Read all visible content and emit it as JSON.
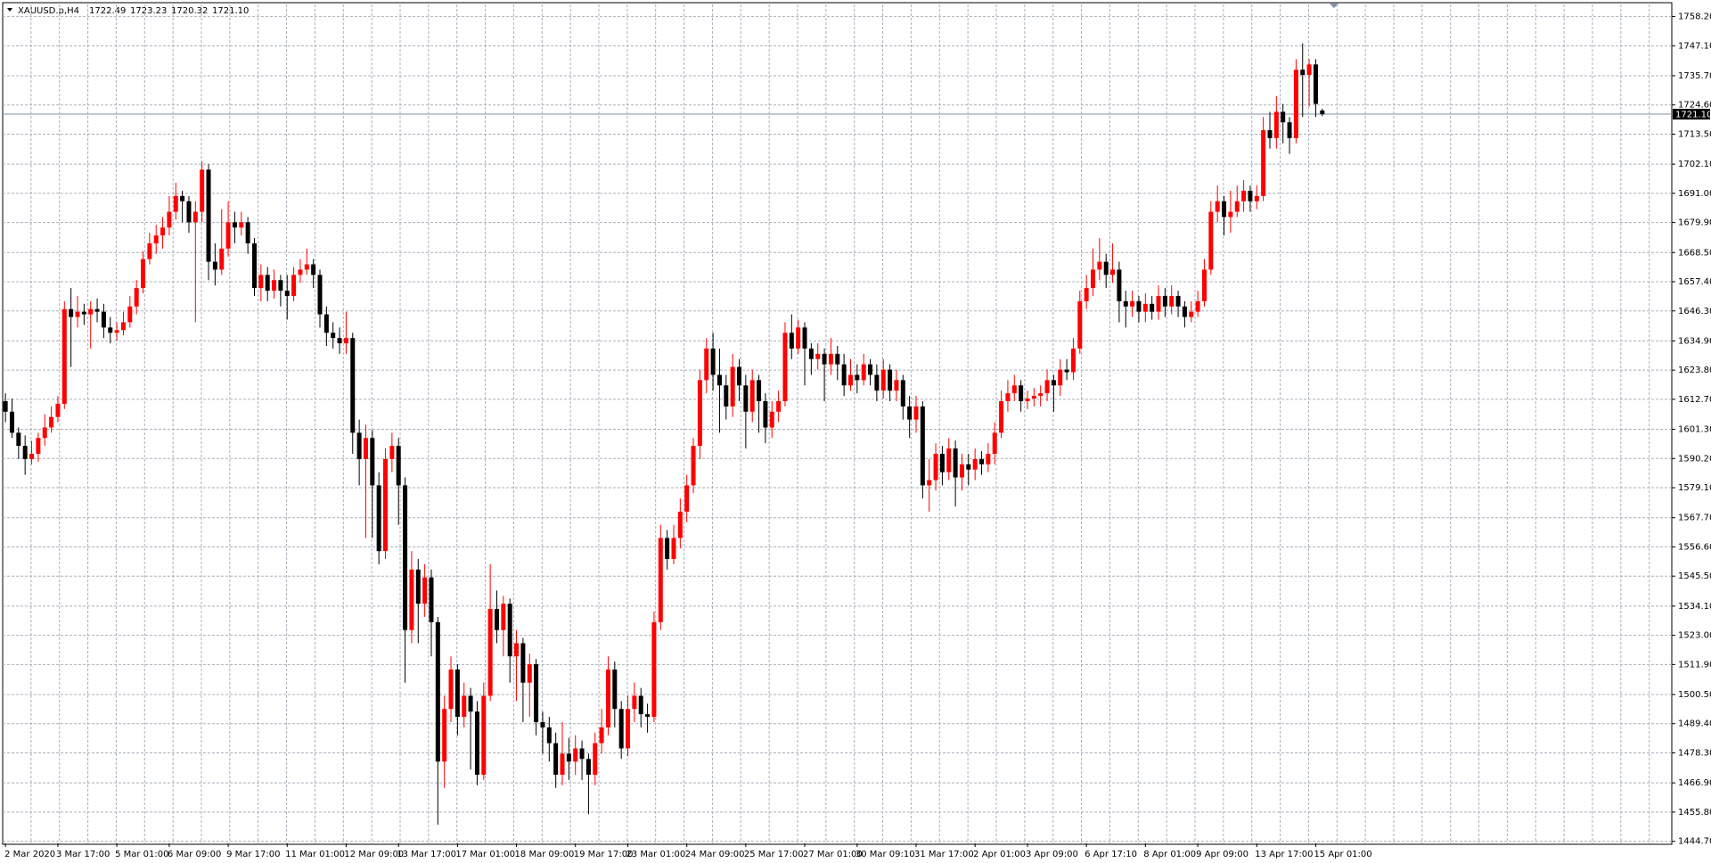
{
  "chart_data": {
    "type": "candlestick",
    "title": "XAUUSD.p,H4",
    "title_values": [
      {
        "value": 1722.49,
        "label": "1722.49"
      },
      {
        "value": 1723.23,
        "label": "1723.23"
      },
      {
        "value": 1720.32,
        "label": "1720.32"
      },
      {
        "value": 1721.1,
        "label": "1721.10"
      }
    ],
    "up_color": "#ff0000",
    "down_color": "#000000",
    "grid": true,
    "price_line": {
      "value": 1721.1,
      "label": "1721.10"
    },
    "ylim": [
      1443.9,
      1762.8
    ],
    "yticks": [
      {
        "value": 1758.2,
        "label": "1758.20"
      },
      {
        "value": 1747.1,
        "label": "1747.10"
      },
      {
        "value": 1735.7,
        "label": "1735.70"
      },
      {
        "value": 1724.6,
        "label": "1724.60"
      },
      {
        "value": 1713.5,
        "label": "1713.50"
      },
      {
        "value": 1702.1,
        "label": "1702.10"
      },
      {
        "value": 1691,
        "label": "1691.00"
      },
      {
        "value": 1679.9,
        "label": "1679.90"
      },
      {
        "value": 1668.5,
        "label": "1668.50"
      },
      {
        "value": 1657.4,
        "label": "1657.40"
      },
      {
        "value": 1646.3,
        "label": "1646.30"
      },
      {
        "value": 1634.9,
        "label": "1634.90"
      },
      {
        "value": 1623.8,
        "label": "1623.80"
      },
      {
        "value": 1612.7,
        "label": "1612.70"
      },
      {
        "value": 1601.3,
        "label": "1601.30"
      },
      {
        "value": 1590.2,
        "label": "1590.20"
      },
      {
        "value": 1579.1,
        "label": "1579.10"
      },
      {
        "value": 1567.7,
        "label": "1567.70"
      },
      {
        "value": 1556.6,
        "label": "1556.60"
      },
      {
        "value": 1545.5,
        "label": "1545.50"
      },
      {
        "value": 1534.1,
        "label": "1534.10"
      },
      {
        "value": 1523,
        "label": "1523.00"
      },
      {
        "value": 1511.9,
        "label": "1511.90"
      },
      {
        "value": 1500.5,
        "label": "1500.50"
      },
      {
        "value": 1489.4,
        "label": "1489.40"
      },
      {
        "value": 1478.3,
        "label": "1478.30"
      },
      {
        "value": 1466.9,
        "label": "1466.90"
      },
      {
        "value": 1455.8,
        "label": "1455.80"
      },
      {
        "value": 1444.7,
        "label": "1444.70"
      }
    ],
    "categories": [
      "2 Mar 2020",
      null,
      null,
      null,
      null,
      null,
      null,
      null,
      "3 Mar 17:00",
      null,
      null,
      null,
      null,
      null,
      null,
      null,
      null,
      "5 Mar 01:00",
      null,
      null,
      null,
      null,
      null,
      null,
      null,
      "6 Mar 09:00",
      null,
      null,
      null,
      null,
      null,
      null,
      null,
      null,
      "9 Mar 17:00",
      null,
      null,
      null,
      null,
      null,
      null,
      null,
      null,
      "11 Mar 01:00",
      null,
      null,
      null,
      null,
      null,
      null,
      null,
      null,
      "12 Mar 09:00",
      null,
      null,
      null,
      null,
      null,
      null,
      null,
      "13 Mar 17:00",
      null,
      null,
      null,
      null,
      null,
      null,
      null,
      null,
      "17 Mar 01:00",
      null,
      null,
      null,
      null,
      null,
      null,
      null,
      null,
      "18 Mar 09:00",
      null,
      null,
      null,
      null,
      null,
      null,
      null,
      null,
      "19 Mar 17:00",
      null,
      null,
      null,
      null,
      null,
      null,
      null,
      "23 Mar 01:00",
      null,
      null,
      null,
      null,
      null,
      null,
      null,
      null,
      "24 Mar 09:00",
      null,
      null,
      null,
      null,
      null,
      null,
      null,
      null,
      "25 Mar 17:00",
      null,
      null,
      null,
      null,
      null,
      null,
      null,
      null,
      "27 Mar 01:00",
      null,
      null,
      null,
      null,
      null,
      null,
      null,
      "30 Mar 09:10",
      null,
      null,
      null,
      null,
      null,
      null,
      null,
      null,
      "31 Mar 17:00",
      null,
      null,
      null,
      null,
      null,
      null,
      null,
      null,
      "2 Apr 01:00",
      null,
      null,
      null,
      null,
      null,
      null,
      null,
      "3 Apr 09:00",
      null,
      null,
      null,
      null,
      null,
      null,
      null,
      null,
      "6 Apr 17:10",
      null,
      null,
      null,
      null,
      null,
      null,
      null,
      null,
      "8 Apr 01:00",
      null,
      null,
      null,
      null,
      null,
      null,
      null,
      "9 Apr 09:00",
      null,
      null,
      null,
      null,
      null,
      null,
      null,
      null,
      "13 Apr 17:00",
      null,
      null,
      null,
      null,
      null,
      null,
      null,
      null,
      "15 Apr 01:00",
      null
    ],
    "values": [
      [
        1612,
        1615,
        1604,
        1608
      ],
      [
        1608,
        1613,
        1598,
        1600
      ],
      [
        1600,
        1602,
        1590,
        1595
      ],
      [
        1595,
        1599,
        1584,
        1590
      ],
      [
        1590,
        1597,
        1588,
        1592
      ],
      [
        1592,
        1600,
        1589,
        1598
      ],
      [
        1598,
        1607,
        1595,
        1602
      ],
      [
        1602,
        1610,
        1600,
        1606
      ],
      [
        1606,
        1614,
        1604,
        1611
      ],
      [
        1611,
        1650,
        1609,
        1647
      ],
      [
        1647,
        1655,
        1625,
        1644
      ],
      [
        1644,
        1652,
        1640,
        1646
      ],
      [
        1646,
        1649,
        1641,
        1645
      ],
      [
        1645,
        1650,
        1632,
        1647
      ],
      [
        1647,
        1651,
        1642,
        1646
      ],
      [
        1646,
        1649,
        1636,
        1640
      ],
      [
        1640,
        1644,
        1634,
        1638
      ],
      [
        1638,
        1642,
        1635,
        1639
      ],
      [
        1639,
        1646,
        1637,
        1642
      ],
      [
        1642,
        1652,
        1640,
        1648
      ],
      [
        1648,
        1658,
        1645,
        1655
      ],
      [
        1655,
        1669,
        1653,
        1666
      ],
      [
        1666,
        1676,
        1664,
        1672
      ],
      [
        1672,
        1679,
        1668,
        1675
      ],
      [
        1675,
        1682,
        1670,
        1678
      ],
      [
        1678,
        1690,
        1675,
        1684
      ],
      [
        1684,
        1695,
        1681,
        1690
      ],
      [
        1690,
        1692,
        1680,
        1688
      ],
      [
        1688,
        1690,
        1676,
        1680
      ],
      [
        1680,
        1688,
        1642,
        1684
      ],
      [
        1684,
        1703,
        1680,
        1700
      ],
      [
        1700,
        1702,
        1658,
        1665
      ],
      [
        1665,
        1672,
        1656,
        1662
      ],
      [
        1662,
        1685,
        1660,
        1670
      ],
      [
        1670,
        1688,
        1667,
        1680
      ],
      [
        1680,
        1684,
        1672,
        1678
      ],
      [
        1678,
        1684,
        1675,
        1680
      ],
      [
        1680,
        1682,
        1668,
        1672
      ],
      [
        1672,
        1674,
        1652,
        1655
      ],
      [
        1655,
        1664,
        1650,
        1660
      ],
      [
        1660,
        1663,
        1650,
        1654
      ],
      [
        1654,
        1662,
        1651,
        1658
      ],
      [
        1658,
        1660,
        1648,
        1654
      ],
      [
        1654,
        1660,
        1643,
        1652
      ],
      [
        1652,
        1663,
        1650,
        1660
      ],
      [
        1660,
        1666,
        1657,
        1662
      ],
      [
        1662,
        1670,
        1660,
        1664
      ],
      [
        1664,
        1666,
        1655,
        1660
      ],
      [
        1660,
        1662,
        1640,
        1645
      ],
      [
        1645,
        1648,
        1633,
        1638
      ],
      [
        1638,
        1642,
        1632,
        1636
      ],
      [
        1636,
        1640,
        1630,
        1634
      ],
      [
        1634,
        1646,
        1630,
        1636
      ],
      [
        1636,
        1638,
        1592,
        1600
      ],
      [
        1600,
        1605,
        1580,
        1590
      ],
      [
        1590,
        1603,
        1560,
        1598
      ],
      [
        1598,
        1601,
        1560,
        1580
      ],
      [
        1580,
        1585,
        1550,
        1555
      ],
      [
        1555,
        1594,
        1552,
        1590
      ],
      [
        1590,
        1600,
        1585,
        1595
      ],
      [
        1595,
        1598,
        1565,
        1580
      ],
      [
        1580,
        1583,
        1505,
        1525
      ],
      [
        1525,
        1555,
        1520,
        1548
      ],
      [
        1548,
        1552,
        1520,
        1535
      ],
      [
        1535,
        1550,
        1530,
        1545
      ],
      [
        1545,
        1548,
        1515,
        1528
      ],
      [
        1528,
        1530,
        1451,
        1475
      ],
      [
        1475,
        1500,
        1465,
        1495
      ],
      [
        1495,
        1515,
        1490,
        1510
      ],
      [
        1510,
        1512,
        1485,
        1492
      ],
      [
        1492,
        1505,
        1488,
        1500
      ],
      [
        1500,
        1503,
        1472,
        1494
      ],
      [
        1494,
        1498,
        1466,
        1470
      ],
      [
        1470,
        1505,
        1468,
        1500
      ],
      [
        1500,
        1550,
        1498,
        1533
      ],
      [
        1533,
        1540,
        1520,
        1525
      ],
      [
        1525,
        1538,
        1515,
        1535
      ],
      [
        1535,
        1537,
        1505,
        1515
      ],
      [
        1515,
        1525,
        1498,
        1520
      ],
      [
        1520,
        1522,
        1490,
        1505
      ],
      [
        1505,
        1516,
        1492,
        1512
      ],
      [
        1512,
        1514,
        1485,
        1490
      ],
      [
        1490,
        1494,
        1478,
        1488
      ],
      [
        1488,
        1492,
        1475,
        1482
      ],
      [
        1482,
        1486,
        1465,
        1470
      ],
      [
        1470,
        1490,
        1466,
        1478
      ],
      [
        1478,
        1484,
        1468,
        1475
      ],
      [
        1475,
        1485,
        1470,
        1480
      ],
      [
        1480,
        1483,
        1468,
        1476
      ],
      [
        1476,
        1478,
        1455,
        1470
      ],
      [
        1470,
        1486,
        1466,
        1482
      ],
      [
        1482,
        1495,
        1478,
        1488
      ],
      [
        1488,
        1515,
        1485,
        1510
      ],
      [
        1510,
        1513,
        1488,
        1495
      ],
      [
        1495,
        1498,
        1476,
        1480
      ],
      [
        1480,
        1500,
        1477,
        1495
      ],
      [
        1495,
        1505,
        1490,
        1500
      ],
      [
        1500,
        1503,
        1488,
        1493
      ],
      [
        1493,
        1497,
        1486,
        1492
      ],
      [
        1492,
        1532,
        1490,
        1528
      ],
      [
        1528,
        1565,
        1525,
        1560
      ],
      [
        1560,
        1563,
        1548,
        1552
      ],
      [
        1552,
        1565,
        1550,
        1560
      ],
      [
        1560,
        1575,
        1556,
        1570
      ],
      [
        1570,
        1584,
        1566,
        1580
      ],
      [
        1580,
        1598,
        1577,
        1595
      ],
      [
        1595,
        1624,
        1590,
        1620
      ],
      [
        1620,
        1636,
        1615,
        1632
      ],
      [
        1632,
        1638,
        1616,
        1622
      ],
      [
        1622,
        1632,
        1600,
        1618
      ],
      [
        1618,
        1622,
        1605,
        1610
      ],
      [
        1610,
        1630,
        1606,
        1625
      ],
      [
        1625,
        1628,
        1612,
        1618
      ],
      [
        1618,
        1622,
        1594,
        1608
      ],
      [
        1608,
        1624,
        1604,
        1620
      ],
      [
        1620,
        1622,
        1600,
        1612
      ],
      [
        1612,
        1615,
        1596,
        1602
      ],
      [
        1602,
        1612,
        1598,
        1608
      ],
      [
        1608,
        1616,
        1604,
        1612
      ],
      [
        1612,
        1642,
        1610,
        1638
      ],
      [
        1638,
        1645,
        1628,
        1632
      ],
      [
        1632,
        1643,
        1630,
        1640
      ],
      [
        1640,
        1642,
        1618,
        1632
      ],
      [
        1632,
        1634,
        1622,
        1628
      ],
      [
        1628,
        1634,
        1624,
        1630
      ],
      [
        1630,
        1632,
        1612,
        1626
      ],
      [
        1626,
        1636,
        1622,
        1630
      ],
      [
        1630,
        1633,
        1620,
        1626
      ],
      [
        1626,
        1630,
        1614,
        1618
      ],
      [
        1618,
        1628,
        1616,
        1622
      ],
      [
        1622,
        1626,
        1615,
        1620
      ],
      [
        1620,
        1630,
        1618,
        1626
      ],
      [
        1626,
        1628,
        1618,
        1622
      ],
      [
        1622,
        1626,
        1612,
        1616
      ],
      [
        1616,
        1628,
        1613,
        1624
      ],
      [
        1624,
        1626,
        1612,
        1616
      ],
      [
        1616,
        1624,
        1612,
        1620
      ],
      [
        1620,
        1622,
        1605,
        1610
      ],
      [
        1610,
        1614,
        1598,
        1605
      ],
      [
        1605,
        1614,
        1600,
        1610
      ],
      [
        1610,
        1612,
        1575,
        1580
      ],
      [
        1580,
        1590,
        1570,
        1582
      ],
      [
        1582,
        1596,
        1578,
        1592
      ],
      [
        1592,
        1595,
        1580,
        1585
      ],
      [
        1585,
        1598,
        1582,
        1594
      ],
      [
        1594,
        1597,
        1572,
        1583
      ],
      [
        1583,
        1592,
        1578,
        1588
      ],
      [
        1588,
        1592,
        1580,
        1586
      ],
      [
        1586,
        1594,
        1582,
        1590
      ],
      [
        1590,
        1593,
        1584,
        1588
      ],
      [
        1588,
        1596,
        1585,
        1592
      ],
      [
        1592,
        1604,
        1588,
        1600
      ],
      [
        1600,
        1616,
        1598,
        1612
      ],
      [
        1612,
        1620,
        1608,
        1615
      ],
      [
        1615,
        1622,
        1612,
        1618
      ],
      [
        1618,
        1620,
        1608,
        1612
      ],
      [
        1612,
        1616,
        1609,
        1613
      ],
      [
        1613,
        1617,
        1610,
        1614
      ],
      [
        1614,
        1618,
        1610,
        1615
      ],
      [
        1615,
        1624,
        1612,
        1620
      ],
      [
        1620,
        1622,
        1608,
        1618
      ],
      [
        1618,
        1628,
        1614,
        1624
      ],
      [
        1624,
        1628,
        1620,
        1623
      ],
      [
        1623,
        1636,
        1620,
        1632
      ],
      [
        1632,
        1654,
        1630,
        1650
      ],
      [
        1650,
        1660,
        1647,
        1655
      ],
      [
        1655,
        1670,
        1652,
        1662
      ],
      [
        1662,
        1674,
        1658,
        1665
      ],
      [
        1665,
        1668,
        1655,
        1660
      ],
      [
        1660,
        1672,
        1657,
        1662
      ],
      [
        1662,
        1665,
        1642,
        1650
      ],
      [
        1650,
        1654,
        1640,
        1648
      ],
      [
        1648,
        1654,
        1644,
        1650
      ],
      [
        1650,
        1652,
        1642,
        1646
      ],
      [
        1646,
        1653,
        1642,
        1649
      ],
      [
        1649,
        1652,
        1643,
        1646
      ],
      [
        1646,
        1656,
        1643,
        1652
      ],
      [
        1652,
        1655,
        1644,
        1648
      ],
      [
        1648,
        1656,
        1645,
        1652
      ],
      [
        1652,
        1654,
        1644,
        1648
      ],
      [
        1648,
        1650,
        1640,
        1644
      ],
      [
        1644,
        1650,
        1642,
        1646
      ],
      [
        1646,
        1654,
        1644,
        1650
      ],
      [
        1650,
        1666,
        1648,
        1662
      ],
      [
        1662,
        1688,
        1660,
        1684
      ],
      [
        1684,
        1694,
        1680,
        1688
      ],
      [
        1688,
        1690,
        1675,
        1682
      ],
      [
        1682,
        1692,
        1676,
        1684
      ],
      [
        1684,
        1694,
        1682,
        1688
      ],
      [
        1688,
        1696,
        1684,
        1692
      ],
      [
        1692,
        1694,
        1684,
        1688
      ],
      [
        1688,
        1694,
        1685,
        1690
      ],
      [
        1690,
        1720,
        1688,
        1715
      ],
      [
        1715,
        1722,
        1708,
        1712
      ],
      [
        1712,
        1728,
        1708,
        1722
      ],
      [
        1722,
        1725,
        1710,
        1718
      ],
      [
        1718,
        1720,
        1706,
        1712
      ],
      [
        1712,
        1742,
        1710,
        1738
      ],
      [
        1738,
        1748,
        1720,
        1736
      ],
      [
        1736,
        1742,
        1724,
        1740
      ],
      [
        1740,
        1742,
        1720,
        1725
      ],
      [
        1722.49,
        1723.23,
        1720.32,
        1721.1
      ]
    ]
  }
}
